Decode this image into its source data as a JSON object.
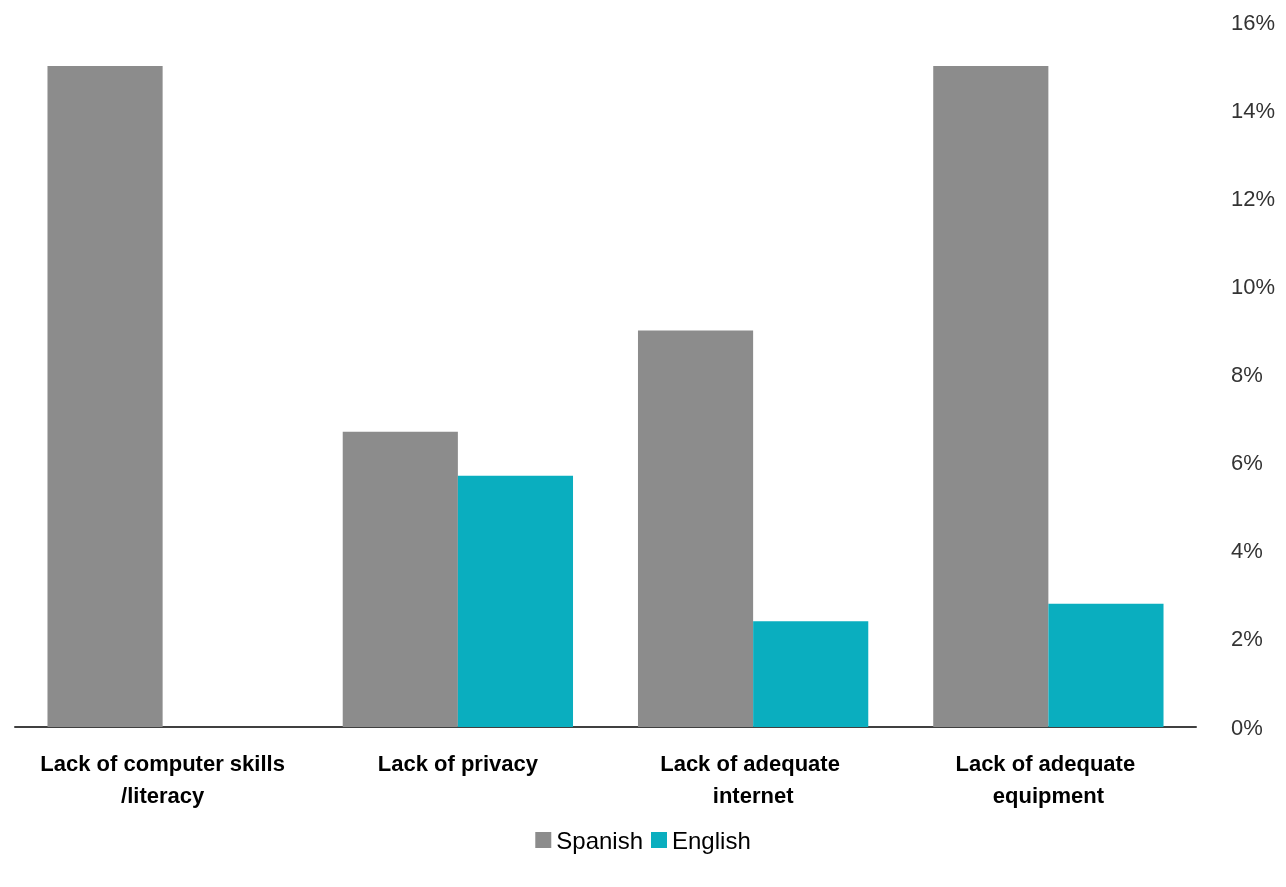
{
  "chart_data": {
    "type": "bar",
    "categories": [
      "Lack of computer skills/literacy",
      "Lack of privacy",
      "Lack of adequate internet",
      "Lack of adequate equipment"
    ],
    "series": [
      {
        "name": "Spanish",
        "color": "#8c8c8c",
        "values": [
          15,
          6.7,
          9,
          15
        ]
      },
      {
        "name": "English",
        "color": "#0aaebf",
        "values": [
          0,
          5.7,
          2.4,
          2.8
        ]
      }
    ],
    "ylim": [
      0,
      16
    ],
    "yticks": [
      {
        "value": 0,
        "label": "0%"
      },
      {
        "value": 2,
        "label": "2%"
      },
      {
        "value": 4,
        "label": "4%"
      },
      {
        "value": 6,
        "label": "6%"
      },
      {
        "value": 8,
        "label": "8%"
      },
      {
        "value": 10,
        "label": "10%"
      },
      {
        "value": 12,
        "label": "12%"
      },
      {
        "value": 14,
        "label": "14%"
      },
      {
        "value": 16,
        "label": "16%"
      }
    ],
    "grid": false,
    "legend": "bottom"
  }
}
